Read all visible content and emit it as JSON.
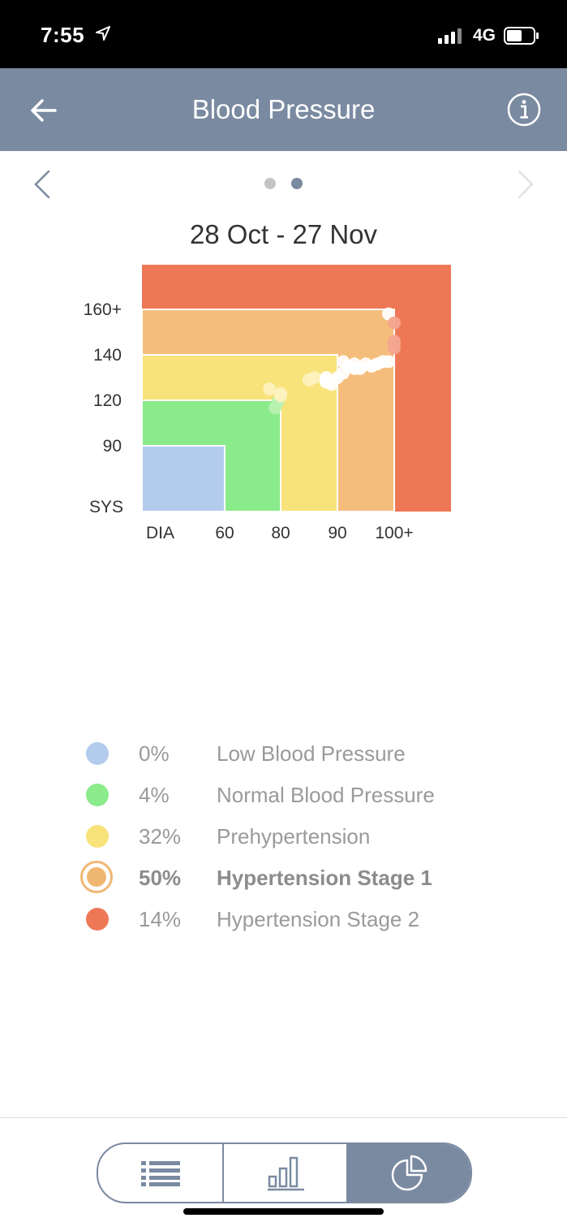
{
  "status_bar": {
    "time": "7:55",
    "network": "4G"
  },
  "header": {
    "title": "Blood Pressure"
  },
  "pager": {
    "current": 2,
    "total": 2
  },
  "date_range": "28 Oct - 27 Nov",
  "chart_data": {
    "type": "scatter",
    "title": "",
    "xlabel": "DIA",
    "ylabel": "SYS",
    "x_ticks": [
      "60",
      "80",
      "90",
      "100+"
    ],
    "y_ticks": [
      "90",
      "120",
      "140",
      "160+"
    ],
    "zones": [
      {
        "name": "Low Blood Pressure",
        "color": "#b3cbec"
      },
      {
        "name": "Normal Blood Pressure",
        "color": "#8aeb8a"
      },
      {
        "name": "Prehypertension",
        "color": "#f8e27a"
      },
      {
        "name": "Hypertension Stage 1",
        "color": "#f5bd7b"
      },
      {
        "name": "Hypertension Stage 2",
        "color": "#ee7856"
      }
    ],
    "points": [
      {
        "dia": 79,
        "sys": 119
      },
      {
        "dia": 80,
        "sys": 122
      },
      {
        "dia": 80,
        "sys": 123
      },
      {
        "dia": 76,
        "sys": 125
      },
      {
        "dia": 85,
        "sys": 129
      },
      {
        "dia": 86,
        "sys": 130
      },
      {
        "dia": 88,
        "sys": 130
      },
      {
        "dia": 88,
        "sys": 128
      },
      {
        "dia": 89,
        "sys": 127
      },
      {
        "dia": 90,
        "sys": 130
      },
      {
        "dia": 91,
        "sys": 132
      },
      {
        "dia": 92,
        "sys": 135
      },
      {
        "dia": 93,
        "sys": 136
      },
      {
        "dia": 93,
        "sys": 134
      },
      {
        "dia": 94,
        "sys": 134
      },
      {
        "dia": 91,
        "sys": 137
      },
      {
        "dia": 92,
        "sys": 135
      },
      {
        "dia": 95,
        "sys": 136
      },
      {
        "dia": 96,
        "sys": 135
      },
      {
        "dia": 97,
        "sys": 136
      },
      {
        "dia": 98,
        "sys": 137
      },
      {
        "dia": 99,
        "sys": 137
      },
      {
        "dia": 99,
        "sys": 158
      },
      {
        "dia": 100,
        "sys": 154
      },
      {
        "dia": 100,
        "sys": 146
      },
      {
        "dia": 100,
        "sys": 145
      },
      {
        "dia": 100,
        "sys": 143
      },
      {
        "dia": 78,
        "sys": 115
      }
    ]
  },
  "legend": [
    {
      "pct": "0%",
      "label": "Low Blood Pressure",
      "color": "#b3cbec",
      "selected": false
    },
    {
      "pct": "4%",
      "label": "Normal Blood Pressure",
      "color": "#8aeb8a",
      "selected": false
    },
    {
      "pct": "32%",
      "label": "Prehypertension",
      "color": "#f8e27a",
      "selected": false
    },
    {
      "pct": "50%",
      "label": "Hypertension Stage 1",
      "color": "#f5bd7b",
      "selected": true
    },
    {
      "pct": "14%",
      "label": "Hypertension Stage 2",
      "color": "#ee7856",
      "selected": false
    }
  ],
  "tabs": [
    {
      "name": "list-icon",
      "active": false
    },
    {
      "name": "bar-chart-icon",
      "active": false
    },
    {
      "name": "pie-chart-icon",
      "active": true
    }
  ],
  "colors": {
    "accent": "#7a8aa1"
  }
}
